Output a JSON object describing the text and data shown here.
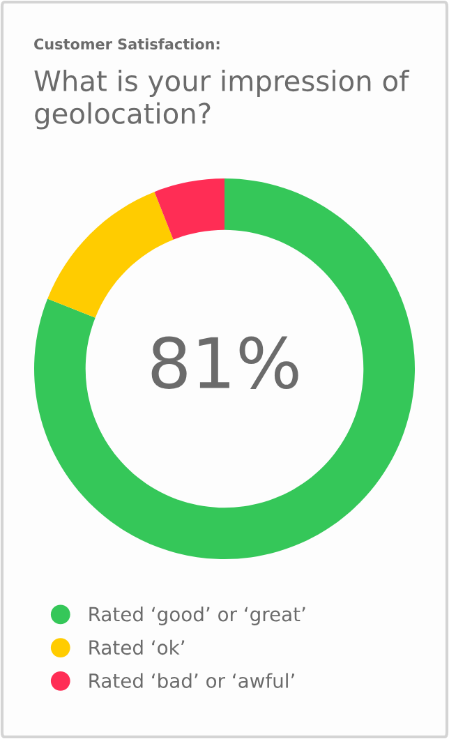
{
  "chart_data": {
    "type": "donut",
    "title": "Customer Satisfaction:",
    "subtitle": "What is your impression of geolocation?",
    "categories": [
      "Rated ‘good’ or ‘great’",
      "Rated ‘ok’",
      "Rated ‘bad’ or ‘awful’"
    ],
    "values": [
      81,
      13,
      6
    ],
    "colors": [
      "#35c759",
      "#ffcc00",
      "#ff2d55"
    ],
    "annotations": [
      "81%"
    ],
    "legend": "bottom"
  }
}
